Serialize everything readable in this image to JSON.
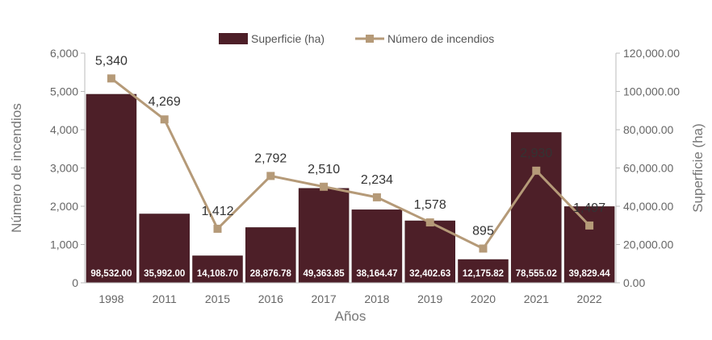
{
  "chart_data": {
    "type": "bar+line",
    "categories": [
      "1998",
      "2011",
      "2015",
      "2016",
      "2017",
      "2018",
      "2019",
      "2020",
      "2021",
      "2022"
    ],
    "series": [
      {
        "name": "Superficie (ha)",
        "type": "bar",
        "axis": "right",
        "values": [
          98532.0,
          35992.0,
          14108.7,
          28876.78,
          49363.85,
          38164.47,
          32402.63,
          12175.82,
          78555.02,
          39829.44
        ],
        "labels": [
          "98,532.00",
          "35,992.00",
          "14,108.70",
          "28,876.78",
          "49,363.85",
          "38,164.47",
          "32,402.63",
          "12,175.82",
          "78,555.02",
          "39,829.44"
        ]
      },
      {
        "name": "Número de incendios",
        "type": "line",
        "axis": "left",
        "values": [
          5340,
          4269,
          1412,
          2792,
          2510,
          2234,
          1578,
          895,
          2930,
          1497
        ],
        "labels": [
          "5,340",
          "4,269",
          "1,412",
          "2,792",
          "2,510",
          "2,234",
          "1,578",
          "895",
          "2,930",
          "1,497"
        ]
      }
    ],
    "xlabel": "Años",
    "ylabel_left": "Número de incendios",
    "ylabel_right": "Superficie (ha)",
    "ylim_left": [
      0,
      6000
    ],
    "ylim_right": [
      0,
      120000
    ],
    "yticks_left": [
      "0",
      "1,000",
      "2,000",
      "3,000",
      "4,000",
      "5,000",
      "6,000"
    ],
    "yticks_right": [
      "0.00",
      "20,000.00",
      "40,000.00",
      "60,000.00",
      "80,000.00",
      "100,000.00",
      "120,000.00"
    ],
    "legend_position": "top",
    "grid": false,
    "colors": {
      "bar": "#4d1f28",
      "line": "#b59a78",
      "axis": "#bbbbbb"
    }
  }
}
